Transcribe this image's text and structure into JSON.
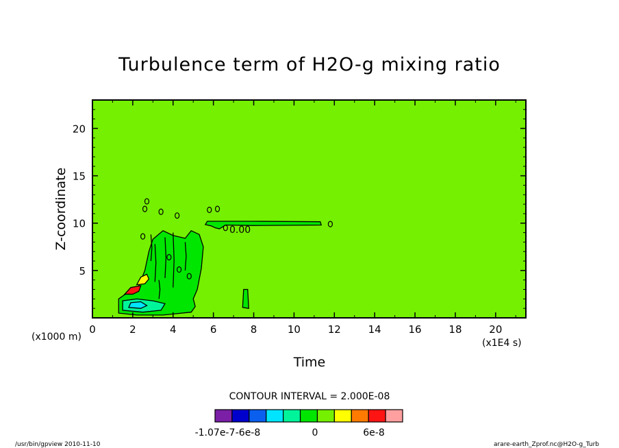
{
  "chart_data": {
    "type": "heatmap",
    "title": "Turbulence term of H2O-g mixing ratio",
    "xlabel": "Time",
    "ylabel": "Z-coordinate",
    "x_unit_label": "(x1E4 s)",
    "y_unit_label": "(x1000 m)",
    "xlim": [
      0,
      21.5
    ],
    "ylim": [
      0,
      23
    ],
    "x_ticks": [
      0,
      2,
      4,
      6,
      8,
      10,
      12,
      14,
      16,
      18,
      20
    ],
    "y_ticks": [
      5,
      10,
      15,
      20
    ],
    "contour_interval_text": "CONTOUR INTERVAL = 2.000E-08",
    "contour_label": "0.00",
    "background_level": 0,
    "colorbar": {
      "colors": [
        "#7a1fa6",
        "#0000cd",
        "#0a5fef",
        "#00e5ff",
        "#00f59a",
        "#00e600",
        "#74f000",
        "#ffff00",
        "#ff7a00",
        "#ff1414",
        "#ff9f9f"
      ],
      "tick_labels": [
        "-1.07e-7",
        "-6e-8",
        "0",
        "6e-8"
      ],
      "tick_values": [
        -1.07e-07,
        -6e-08,
        0,
        6e-08
      ]
    },
    "highlight_colors": {
      "background": "#74f000",
      "negative_small": "#00e600",
      "negative_medium": "#00f59a",
      "negative_large": "#00e5ff",
      "positive_small": "#ffff00",
      "positive_large": "#ff1414"
    }
  },
  "footer": {
    "left": "/usr/bin/gpview   2010-11-10",
    "right": "arare-earth_Zprof.nc@H2O-g_Turb"
  }
}
